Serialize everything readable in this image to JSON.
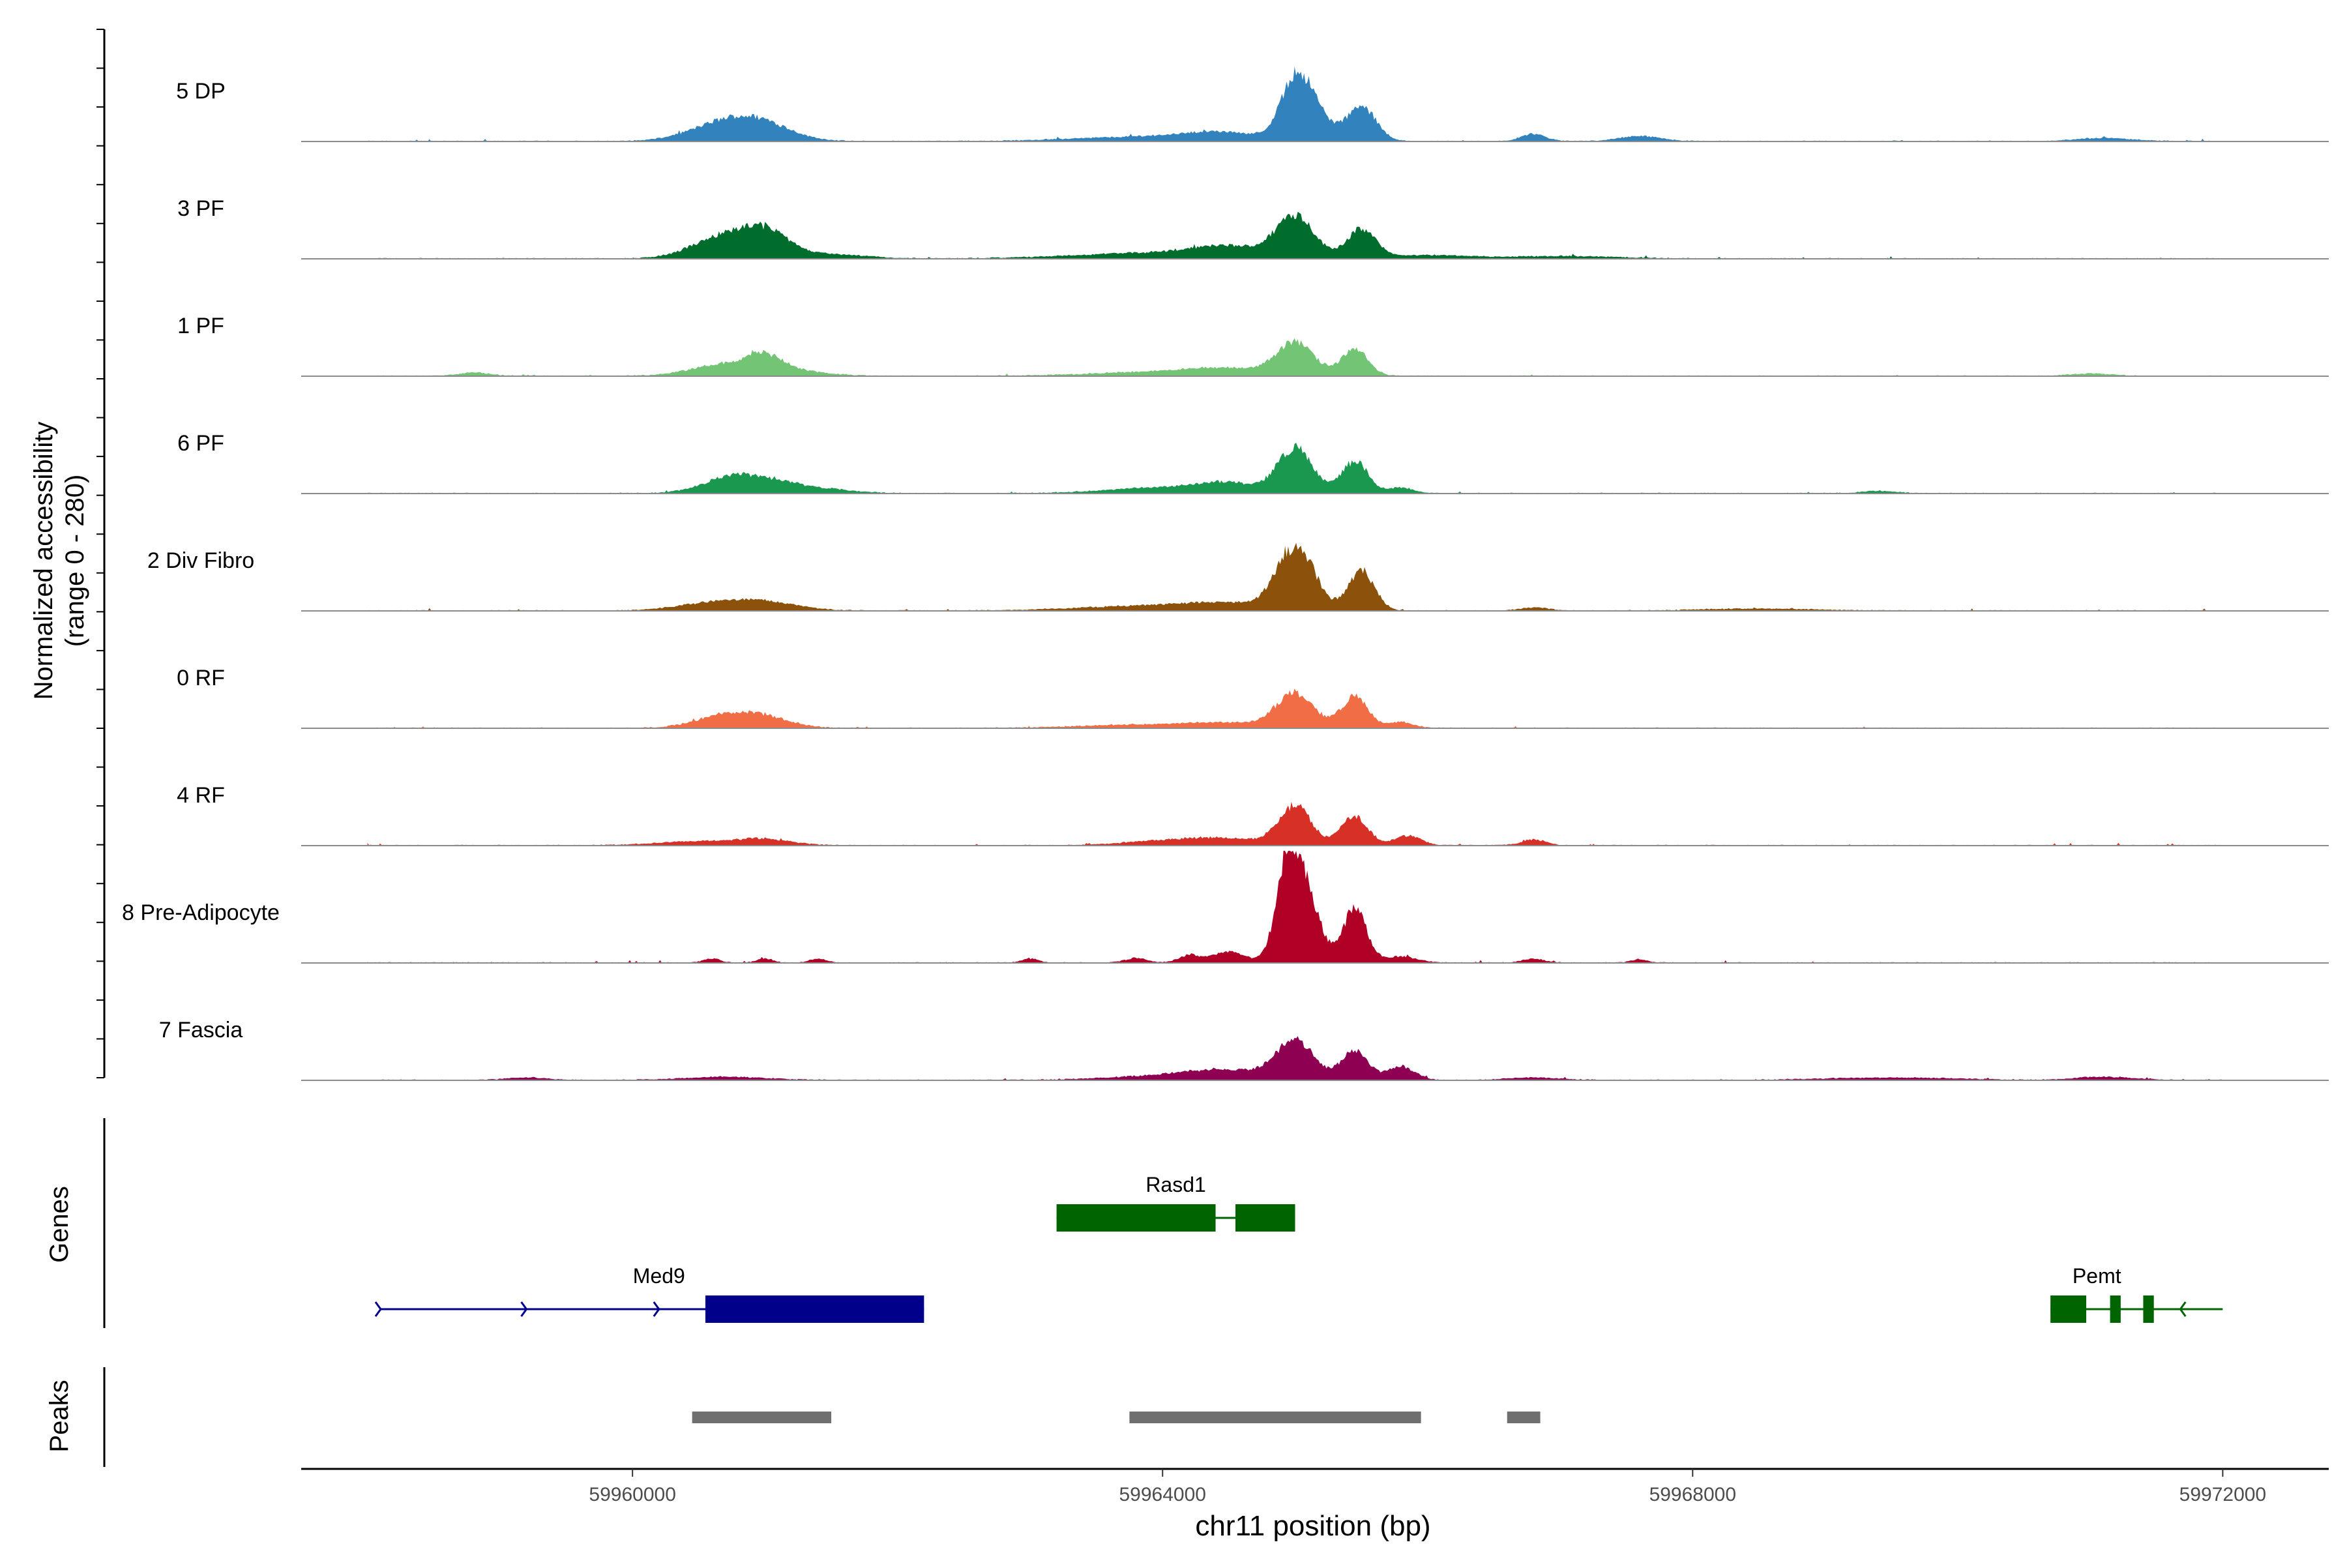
{
  "chart_data": {
    "type": "area",
    "subtype": "genome-coverage-track",
    "title": "",
    "xlabel": "chr11 position (bp)",
    "ylabel_line1": "Normalized accessibility",
    "ylabel_line2": "(range 0 - 280)",
    "y_range": [
      0,
      280
    ],
    "xlim": [
      59957500,
      59972800
    ],
    "x_ticks": [
      59960000,
      59964000,
      59968000,
      59972000
    ],
    "x_tick_labels": [
      "59960000",
      "59964000",
      "59968000",
      "59972000"
    ],
    "tracks": [
      {
        "name": "5 DP",
        "color": "#3182bd",
        "peaks": [
          [
            59960700,
            45,
            260
          ],
          [
            59961000,
            32,
            220
          ],
          [
            59963800,
            10,
            500
          ],
          [
            59964450,
            20,
            300
          ],
          [
            59965000,
            140,
            110
          ],
          [
            59965150,
            60,
            120
          ],
          [
            59965500,
            85,
            110
          ],
          [
            59966800,
            18,
            90
          ],
          [
            59967600,
            12,
            160
          ],
          [
            59971100,
            8,
            200
          ]
        ]
      },
      {
        "name": "3 PF",
        "color": "#006d2c",
        "peaks": [
          [
            59960700,
            55,
            240
          ],
          [
            59961000,
            50,
            170
          ],
          [
            59961400,
            12,
            300
          ],
          [
            59964000,
            15,
            600
          ],
          [
            59964500,
            22,
            250
          ],
          [
            59965000,
            105,
            140
          ],
          [
            59965500,
            70,
            110
          ],
          [
            59966000,
            8,
            300
          ],
          [
            59967000,
            6,
            400
          ]
        ]
      },
      {
        "name": "1 PF",
        "color": "#74c476",
        "peaks": [
          [
            59958800,
            8,
            120
          ],
          [
            59960700,
            28,
            250
          ],
          [
            59961000,
            40,
            140
          ],
          [
            59961300,
            10,
            200
          ],
          [
            59964000,
            10,
            500
          ],
          [
            59964500,
            14,
            300
          ],
          [
            59965000,
            80,
            140
          ],
          [
            59965450,
            65,
            100
          ],
          [
            59971000,
            6,
            150
          ]
        ]
      },
      {
        "name": "6 PF",
        "color": "#1a9850",
        "peaks": [
          [
            59960700,
            30,
            200
          ],
          [
            59961000,
            28,
            220
          ],
          [
            59961400,
            10,
            250
          ],
          [
            59964000,
            14,
            400
          ],
          [
            59964500,
            22,
            220
          ],
          [
            59965000,
            112,
            130
          ],
          [
            59965450,
            80,
            100
          ],
          [
            59965800,
            14,
            90
          ],
          [
            59969400,
            6,
            120
          ]
        ]
      },
      {
        "name": "2 Div Fibro",
        "color": "#8c510a",
        "peaks": [
          [
            59960600,
            18,
            260
          ],
          [
            59961000,
            20,
            250
          ],
          [
            59963900,
            12,
            500
          ],
          [
            59964500,
            15,
            300
          ],
          [
            59964950,
            120,
            120
          ],
          [
            59965100,
            70,
            110
          ],
          [
            59965500,
            98,
            100
          ],
          [
            59966800,
            8,
            100
          ],
          [
            59968500,
            5,
            400
          ]
        ]
      },
      {
        "name": "0 RF",
        "color": "#f16d45",
        "peaks": [
          [
            59960700,
            30,
            220
          ],
          [
            59961000,
            22,
            200
          ],
          [
            59963800,
            8,
            400
          ],
          [
            59964500,
            12,
            300
          ],
          [
            59965000,
            85,
            140
          ],
          [
            59965450,
            78,
            100
          ],
          [
            59965800,
            15,
            90
          ]
        ]
      },
      {
        "name": "4 RF",
        "color": "#d73027",
        "peaks": [
          [
            59960500,
            10,
            300
          ],
          [
            59961000,
            14,
            200
          ],
          [
            59964000,
            10,
            300
          ],
          [
            59964500,
            16,
            300
          ],
          [
            59965000,
            95,
            120
          ],
          [
            59965450,
            72,
            100
          ],
          [
            59965850,
            24,
            100
          ],
          [
            59966800,
            14,
            90
          ]
        ]
      },
      {
        "name": "8 Pre-Adipocyte",
        "color": "#b10026",
        "peaks": [
          [
            59960600,
            10,
            60
          ],
          [
            59961000,
            10,
            60
          ],
          [
            59961400,
            10,
            60
          ],
          [
            59963000,
            10,
            60
          ],
          [
            59963800,
            12,
            80
          ],
          [
            59964200,
            18,
            80
          ],
          [
            59964500,
            28,
            120
          ],
          [
            59964950,
            250,
            90
          ],
          [
            59965100,
            140,
            100
          ],
          [
            59965450,
            135,
            90
          ],
          [
            59965800,
            15,
            120
          ],
          [
            59966800,
            10,
            80
          ],
          [
            59967600,
            8,
            60
          ]
        ]
      },
      {
        "name": "7 Fascia",
        "color": "#8e0152",
        "peaks": [
          [
            59959200,
            6,
            150
          ],
          [
            59960700,
            8,
            300
          ],
          [
            59964000,
            10,
            400
          ],
          [
            59964500,
            22,
            300
          ],
          [
            59965000,
            95,
            140
          ],
          [
            59965450,
            75,
            100
          ],
          [
            59965800,
            34,
            100
          ],
          [
            59966800,
            6,
            200
          ],
          [
            59969500,
            6,
            500
          ],
          [
            59971100,
            8,
            200
          ]
        ]
      }
    ],
    "genes_label": "Genes",
    "genes": [
      {
        "name": "Rasd1",
        "color": "#006400",
        "row": 1,
        "strand": "-",
        "start": 59963200,
        "end": 59965000,
        "exons": [
          [
            59963200,
            59964400
          ],
          [
            59964550,
            59965000
          ]
        ]
      },
      {
        "name": "Med9",
        "color": "#00008b",
        "row": 2,
        "strand": "+",
        "start": 59958100,
        "end": 59962200,
        "exons": [
          [
            59960550,
            59962200
          ]
        ]
      },
      {
        "name": "Pemt",
        "color": "#006400",
        "row": 2,
        "strand": "-",
        "start": 59970700,
        "end": 59972000,
        "exons": [
          [
            59970700,
            59970970
          ],
          [
            59971150,
            59971230
          ],
          [
            59971400,
            59971480
          ]
        ]
      }
    ],
    "peaks_label": "Peaks",
    "peak_regions": [
      [
        59960450,
        59961500
      ],
      [
        59963750,
        59965950
      ],
      [
        59966600,
        59966850
      ]
    ]
  }
}
